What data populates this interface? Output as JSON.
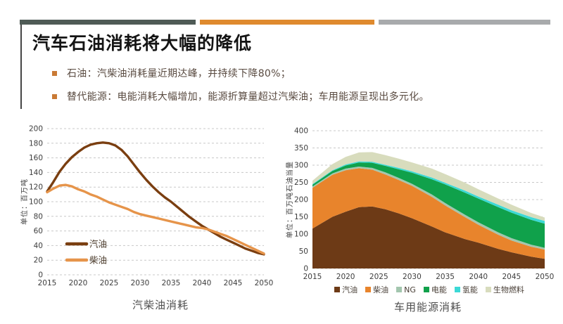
{
  "header": {
    "title": "汽车石油消耗将大幅的降低"
  },
  "accents": {
    "bar_dark": "#4f5b56",
    "bar_orange": "#df8a2e",
    "bar_gray": "#a8aaac",
    "accent_line": "#454545",
    "bullet_square": "#c97a35"
  },
  "bullets": [
    {
      "label": "石油：汽柴油消耗量近期达峰，并持续下降80%；"
    },
    {
      "label": "替代能源：电能消耗大幅增加，能源折算量超过汽柴油；车用能源呈现出多元化。"
    }
  ],
  "chart_data": [
    {
      "type": "line",
      "title": "汽柴油消耗",
      "xlabel": "",
      "ylabel": "单位：百万吨",
      "ylim": [
        0,
        200
      ],
      "ytick_step": 20,
      "xlim": [
        2015,
        2050
      ],
      "xticks": [
        2015,
        2020,
        2025,
        2030,
        2035,
        2040,
        2045,
        2050
      ],
      "grid": "dashed-horizontal",
      "legend_position": "inside-left",
      "series": [
        {
          "name": "汽油",
          "color": "#7a3e10",
          "x": [
            2015,
            2016,
            2017,
            2018,
            2019,
            2020,
            2021,
            2022,
            2023,
            2024,
            2025,
            2026,
            2027,
            2028,
            2029,
            2030,
            2031,
            2032,
            2033,
            2034,
            2035,
            2036,
            2037,
            2038,
            2039,
            2040,
            2041,
            2042,
            2043,
            2044,
            2045,
            2046,
            2047,
            2048,
            2049,
            2050
          ],
          "values": [
            114,
            127,
            141,
            152,
            161,
            168,
            174,
            178,
            180,
            181,
            180,
            177,
            171,
            162,
            151,
            140,
            130,
            121,
            113,
            106,
            100,
            93,
            86,
            79,
            73,
            67,
            62,
            57,
            52,
            48,
            44,
            40,
            36,
            33,
            30,
            28
          ]
        },
        {
          "name": "柴油",
          "color": "#e6944a",
          "x": [
            2015,
            2016,
            2017,
            2018,
            2019,
            2020,
            2021,
            2022,
            2023,
            2024,
            2025,
            2026,
            2027,
            2028,
            2029,
            2030,
            2031,
            2032,
            2033,
            2034,
            2035,
            2036,
            2037,
            2038,
            2039,
            2040,
            2041,
            2042,
            2043,
            2044,
            2045,
            2046,
            2047,
            2048,
            2049,
            2050
          ],
          "values": [
            113,
            118,
            122,
            123,
            121,
            117,
            114,
            110,
            107,
            103,
            99,
            96,
            93,
            90,
            86,
            83,
            81,
            79,
            77,
            75,
            73,
            71,
            69,
            67,
            65,
            64,
            62,
            59,
            56,
            53,
            49,
            45,
            41,
            37,
            33,
            29
          ]
        }
      ]
    },
    {
      "type": "area",
      "title": "车用能源消耗",
      "xlabel": "",
      "ylabel": "单位：百万吨石油当量",
      "ylim": [
        0,
        400
      ],
      "ytick_step": 50,
      "xlim": [
        2015,
        2050
      ],
      "xticks": [
        2015,
        2020,
        2025,
        2030,
        2035,
        2040,
        2045,
        2050
      ],
      "grid": "dashed-horizontal",
      "legend_position": "bottom",
      "x": [
        2015,
        2018,
        2020,
        2022,
        2024,
        2026,
        2028,
        2030,
        2033,
        2035,
        2038,
        2040,
        2043,
        2045,
        2048,
        2050
      ],
      "series": [
        {
          "name": "汽油",
          "color": "#6d3a16",
          "values": [
            116,
            150,
            165,
            178,
            180,
            172,
            160,
            146,
            122,
            105,
            85,
            75,
            57,
            47,
            34,
            28
          ]
        },
        {
          "name": "柴油",
          "color": "#e8842c",
          "values": [
            118,
            122,
            120,
            113,
            107,
            101,
            97,
            94,
            86,
            78,
            64,
            52,
            41,
            34,
            29,
            27
          ]
        },
        {
          "name": "NG",
          "color": "#a3c6ae",
          "values": [
            4,
            4,
            5,
            5,
            5,
            6,
            6,
            6,
            7,
            7,
            7,
            7,
            7,
            7,
            6,
            5
          ]
        },
        {
          "name": "电能",
          "color": "#10a14b",
          "values": [
            5,
            7,
            9,
            12,
            15,
            19,
            25,
            32,
            44,
            54,
            64,
            69,
            73,
            74,
            72,
            70
          ]
        },
        {
          "name": "氢能",
          "color": "#3cd9d6",
          "values": [
            2,
            2,
            3,
            3,
            3,
            3,
            4,
            4,
            5,
            5,
            6,
            6,
            7,
            7,
            8,
            8
          ]
        },
        {
          "name": "生物燃料",
          "color": "#d8dcbd",
          "values": [
            10,
            18,
            22,
            26,
            28,
            28,
            27,
            26,
            26,
            25,
            23,
            21,
            18,
            16,
            12,
            10
          ]
        }
      ]
    }
  ]
}
